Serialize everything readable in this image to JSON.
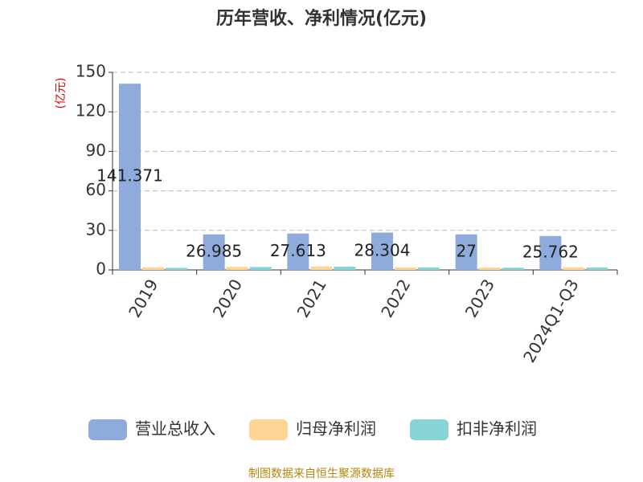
{
  "chart_data": {
    "type": "bar",
    "title": "历年营收、净利情况(亿元)",
    "y_label": "(亿元)",
    "source": "制图数据来自恒生聚源数据库",
    "categories": [
      "2019",
      "2020",
      "2021",
      "2022",
      "2023",
      "2024Q1-Q3"
    ],
    "series": [
      {
        "name": "营业总收入",
        "color": "#8eabdb",
        "data_labels": true,
        "values": [
          141.371,
          26.985,
          27.613,
          28.304,
          27,
          25.762
        ]
      },
      {
        "name": "归母净利润",
        "color": "#fdd594",
        "data_labels": false,
        "values": [
          2.0,
          2.3,
          2.6,
          1.9,
          1.8,
          2.0
        ]
      },
      {
        "name": "扣非净利润",
        "color": "#86d4d6",
        "data_labels": false,
        "values": [
          1.6,
          2.2,
          2.4,
          1.8,
          1.7,
          1.8
        ]
      }
    ],
    "ylim": [
      0,
      150
    ],
    "yticks": [
      0,
      30,
      60,
      90,
      120,
      150
    ],
    "grid": true,
    "legend": "bottom"
  }
}
